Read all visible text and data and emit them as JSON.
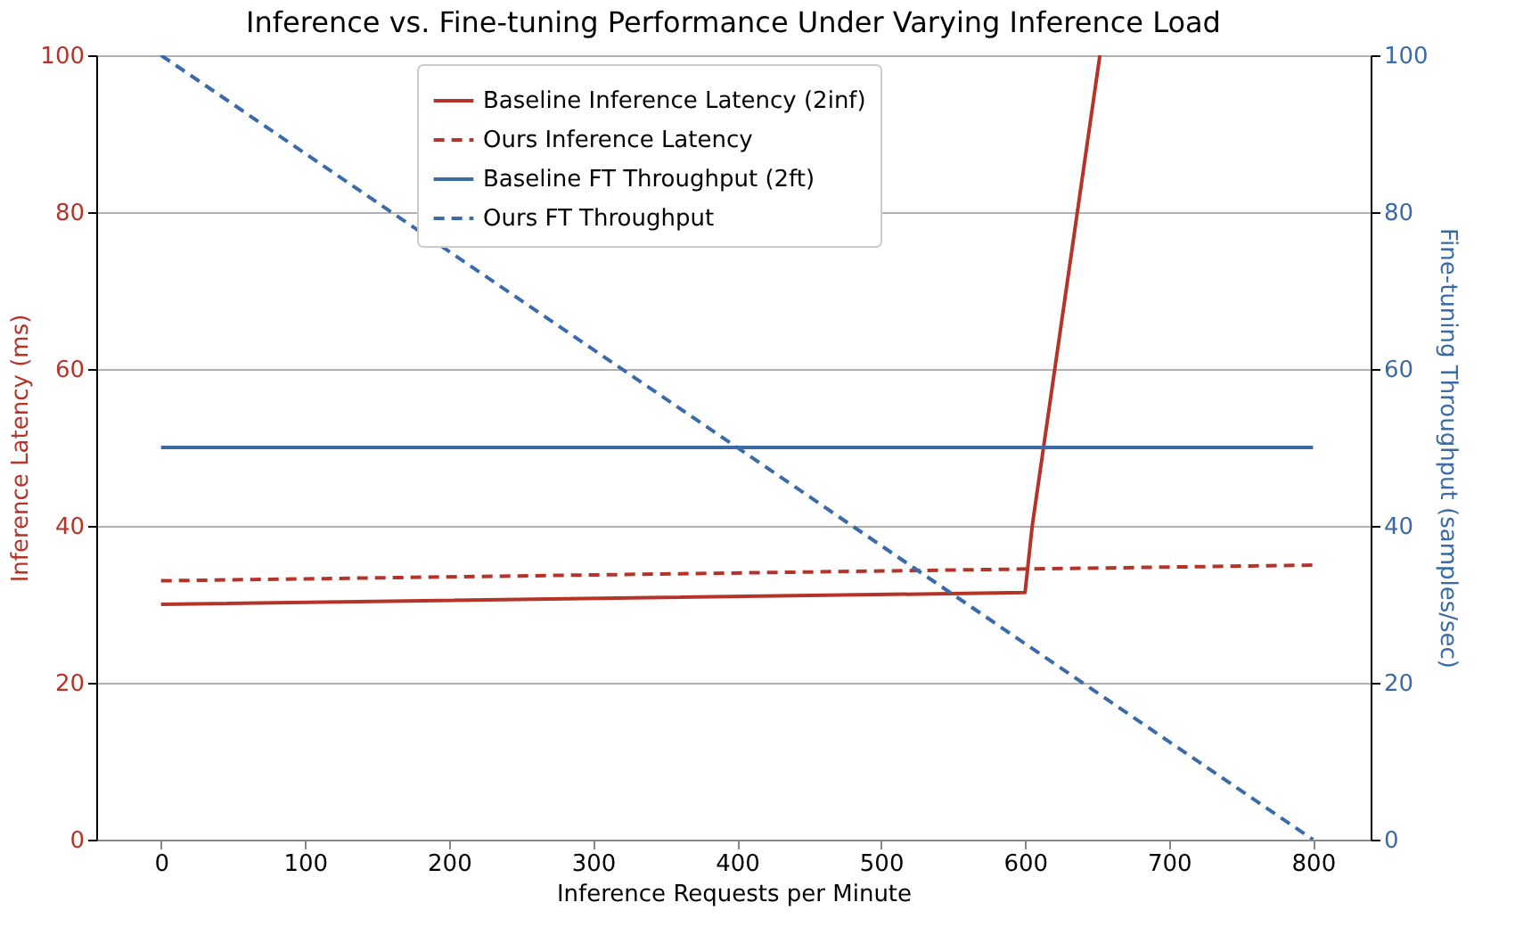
{
  "chart_data": {
    "type": "line",
    "title": "Inference vs. Fine-tuning Performance Under Varying Inference Load",
    "xlabel": "Inference Requests per Minute",
    "ylabel": "Inference Latency (ms)",
    "y2label": "Fine-tuning Throughput (samples/sec)",
    "xlim": [
      -45,
      840
    ],
    "xticks": [
      0,
      100,
      200,
      300,
      400,
      500,
      600,
      700,
      800
    ],
    "ylim": [
      0,
      100
    ],
    "yticks": [
      0,
      20,
      40,
      60,
      80,
      100
    ],
    "y2lim": [
      0,
      100
    ],
    "y2ticks": [
      0,
      20,
      40,
      60,
      80,
      100
    ],
    "grid": "y",
    "legend": "top",
    "marker": "none",
    "series": [
      {
        "name": "Baseline Inference Latency (2inf)",
        "color": "#b5342a",
        "line_style": "solid",
        "x": [
          0,
          600,
          605,
          652
        ],
        "values": [
          30,
          31.5,
          40,
          100
        ]
      },
      {
        "name": "Ours Inference Latency",
        "color": "#b5342a",
        "line_style": "dashed",
        "x": [
          0,
          800
        ],
        "values": [
          33,
          35
        ]
      },
      {
        "name": "Baseline FT Throughput (2ft)",
        "color": "#3a6aa8",
        "line_style": "solid",
        "axis": "y2",
        "x": [
          0,
          800
        ],
        "values": [
          50,
          50
        ]
      },
      {
        "name": "Ours FT Throughput",
        "color": "#3a6aa8",
        "line_style": "dashed",
        "axis": "y2",
        "x": [
          0,
          800
        ],
        "values": [
          100,
          0
        ]
      }
    ]
  }
}
